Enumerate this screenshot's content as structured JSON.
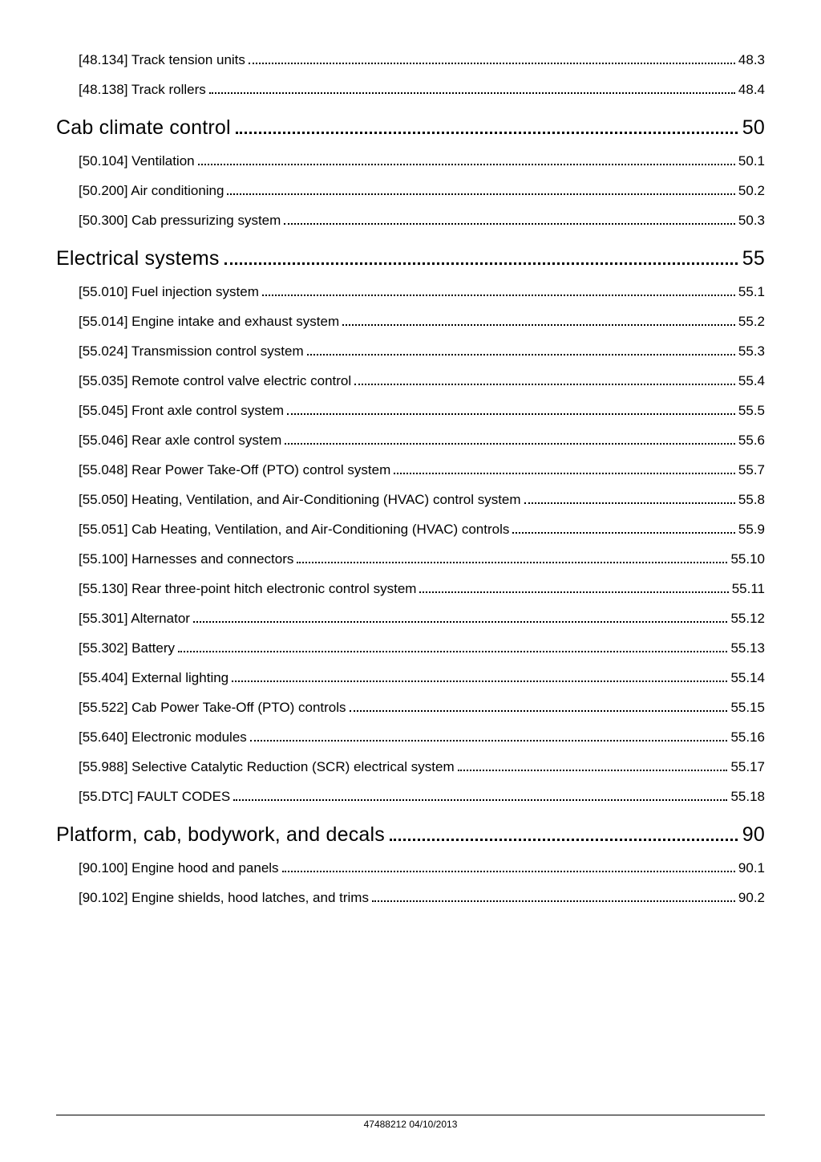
{
  "rows": [
    {
      "level": "h2",
      "label": "[48.134] Track tension units",
      "page": "48.3"
    },
    {
      "level": "h2",
      "label": "[48.138] Track rollers",
      "page": "48.4"
    },
    {
      "level": "h1",
      "label": "Cab climate control",
      "page": "50"
    },
    {
      "level": "h2",
      "label": "[50.104] Ventilation",
      "page": "50.1"
    },
    {
      "level": "h2",
      "label": "[50.200] Air conditioning",
      "page": "50.2"
    },
    {
      "level": "h2",
      "label": "[50.300] Cab pressurizing system",
      "page": "50.3"
    },
    {
      "level": "h1",
      "label": "Electrical systems",
      "page": "55"
    },
    {
      "level": "h2",
      "label": "[55.010] Fuel injection system",
      "page": "55.1"
    },
    {
      "level": "h2",
      "label": "[55.014] Engine intake and exhaust system",
      "page": "55.2"
    },
    {
      "level": "h2",
      "label": "[55.024] Transmission control system",
      "page": "55.3"
    },
    {
      "level": "h2",
      "label": "[55.035] Remote control valve electric control",
      "page": "55.4"
    },
    {
      "level": "h2",
      "label": "[55.045] Front axle control system",
      "page": "55.5"
    },
    {
      "level": "h2",
      "label": "[55.046] Rear axle control system",
      "page": "55.6"
    },
    {
      "level": "h2",
      "label": "[55.048] Rear Power Take-Off (PTO) control system",
      "page": "55.7"
    },
    {
      "level": "h2",
      "label": "[55.050] Heating, Ventilation, and Air-Conditioning (HVAC) control system",
      "page": "55.8"
    },
    {
      "level": "h2",
      "label": "[55.051] Cab Heating, Ventilation, and Air-Conditioning (HVAC) controls",
      "page": "55.9"
    },
    {
      "level": "h2",
      "label": "[55.100] Harnesses and connectors",
      "page": "55.10"
    },
    {
      "level": "h2",
      "label": "[55.130] Rear three-point hitch electronic control system",
      "page": "55.11"
    },
    {
      "level": "h2",
      "label": "[55.301] Alternator",
      "page": "55.12"
    },
    {
      "level": "h2",
      "label": "[55.302] Battery",
      "page": "55.13"
    },
    {
      "level": "h2",
      "label": "[55.404] External lighting",
      "page": "55.14"
    },
    {
      "level": "h2",
      "label": "[55.522] Cab Power Take-Off (PTO) controls",
      "page": "55.15"
    },
    {
      "level": "h2",
      "label": "[55.640] Electronic modules",
      "page": "55.16"
    },
    {
      "level": "h2",
      "label": "[55.988] Selective Catalytic Reduction (SCR) electrical system",
      "page": "55.17"
    },
    {
      "level": "h2",
      "label": "[55.DTC] FAULT CODES",
      "page": "55.18"
    },
    {
      "level": "h1",
      "label": "Platform, cab, bodywork, and decals",
      "page": "90"
    },
    {
      "level": "h2",
      "label": "[90.100] Engine hood and panels",
      "page": "90.1"
    },
    {
      "level": "h2",
      "label": "[90.102] Engine shields, hood latches, and trims",
      "page": "90.2"
    }
  ],
  "footer": "47488212 04/10/2013"
}
